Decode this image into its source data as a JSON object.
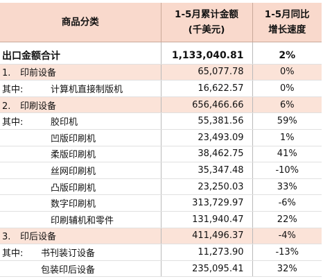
{
  "table": {
    "header": {
      "category": "商品分类",
      "amount_line1": "1-5月累计金额",
      "amount_line2": "(千美元)",
      "growth_line1": "1-5月同比",
      "growth_line2": "增长速度"
    },
    "rows": [
      {
        "prefix": "出口金额合计",
        "name": "",
        "amount": "1,133,040.81",
        "growth": "2%"
      },
      {
        "prefix": "1.",
        "name": "印前设备",
        "amount": "65,077.78",
        "growth": "0%"
      },
      {
        "prefix": "其中:",
        "name": "计算机直接制版机",
        "amount": "16,622.57",
        "growth": "0%"
      },
      {
        "prefix": "2.",
        "name": "印刷设备",
        "amount": "656,466.66",
        "growth": "6%"
      },
      {
        "prefix": "其中:",
        "name": "胶印机",
        "amount": "55,381.56",
        "growth": "59%"
      },
      {
        "prefix": "",
        "name": "凹版印刷机",
        "amount": "23,493.09",
        "growth": "1%"
      },
      {
        "prefix": "",
        "name": "柔版印刷机",
        "amount": "38,462.75",
        "growth": "41%"
      },
      {
        "prefix": "",
        "name": "丝网印刷机",
        "amount": "35,347.48",
        "growth": "-10%"
      },
      {
        "prefix": "",
        "name": "凸版印刷机",
        "amount": "23,250.03",
        "growth": "33%"
      },
      {
        "prefix": "",
        "name": "数字印刷机",
        "amount": "313,729.97",
        "growth": "-6%"
      },
      {
        "prefix": "",
        "name": "印刷辅机和零件",
        "amount": "131,940.47",
        "growth": "22%"
      },
      {
        "prefix": "3.",
        "name": "印后设备",
        "amount": "411,496.37",
        "growth": "-4%"
      },
      {
        "prefix": "其中:",
        "name": "书刊装订设备",
        "amount": "11,273.90",
        "growth": "-13%"
      },
      {
        "prefix": "",
        "name": "包装印后设备",
        "amount": "235,095.41",
        "growth": "32%"
      }
    ]
  },
  "colors": {
    "header_fill": "#f9d9cc",
    "row_shade": "#fbe3d8"
  }
}
